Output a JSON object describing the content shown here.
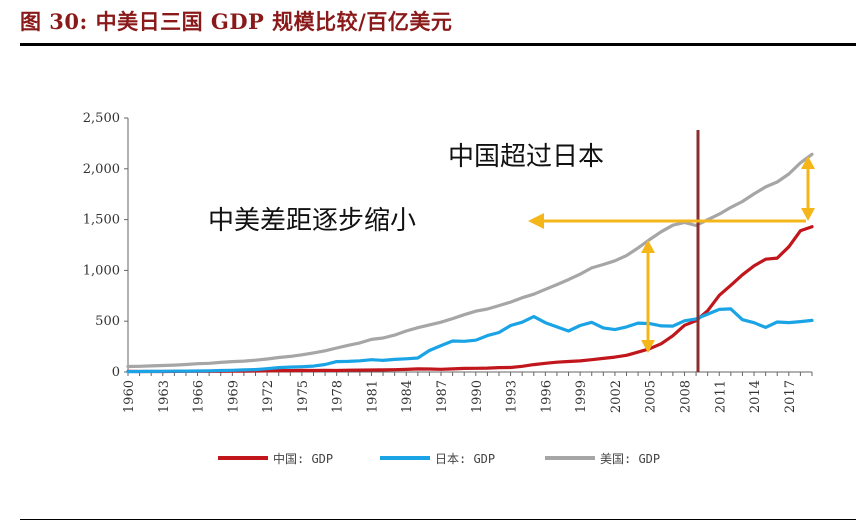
{
  "figure": {
    "title": "图 30:  中美日三国 GDP 规模比较/百亿美元"
  },
  "chart_data": {
    "type": "line",
    "x": [
      1960,
      1961,
      1962,
      1963,
      1964,
      1965,
      1966,
      1967,
      1968,
      1969,
      1970,
      1971,
      1972,
      1973,
      1974,
      1975,
      1976,
      1977,
      1978,
      1979,
      1980,
      1981,
      1982,
      1983,
      1984,
      1985,
      1986,
      1987,
      1988,
      1989,
      1990,
      1991,
      1992,
      1993,
      1994,
      1995,
      1996,
      1997,
      1998,
      1999,
      2000,
      2001,
      2002,
      2003,
      2004,
      2005,
      2006,
      2007,
      2008,
      2009,
      2010,
      2011,
      2012,
      2013,
      2014,
      2015,
      2016,
      2017,
      2018,
      2019
    ],
    "x_tick_labels": [
      "1960",
      "1963",
      "1966",
      "1969",
      "1972",
      "1975",
      "1978",
      "1981",
      "1984",
      "1987",
      "1990",
      "1993",
      "1996",
      "1999",
      "2002",
      "2005",
      "2008",
      "2011",
      "2014",
      "2017"
    ],
    "ylim": [
      0,
      2500
    ],
    "y_ticks": [
      0,
      500,
      1000,
      1500,
      2000,
      2500
    ],
    "y_tick_labels": [
      "0",
      "500",
      "1,000",
      "1,500",
      "2,000",
      "2,500"
    ],
    "grid": false,
    "legend_position": "bottom",
    "series": [
      {
        "name": "中国: GDP",
        "color": "#c0161c",
        "values": [
          6,
          5,
          5,
          5,
          6,
          7,
          7,
          7,
          7,
          8,
          9,
          10,
          11,
          14,
          14,
          16,
          15,
          17,
          15,
          18,
          19,
          20,
          21,
          23,
          26,
          31,
          30,
          27,
          31,
          35,
          36,
          38,
          43,
          44,
          56,
          73,
          86,
          96,
          103,
          109,
          121,
          134,
          147,
          164,
          196,
          229,
          279,
          357,
          460,
          505,
          603,
          755,
          853,
          957,
          1044,
          1110,
          1121,
          1232,
          1390,
          1430
        ]
      },
      {
        "name": "日本: GDP",
        "color": "#1aa4e6",
        "values": [
          4,
          5,
          6,
          7,
          8,
          9,
          10,
          12,
          15,
          17,
          21,
          24,
          32,
          43,
          48,
          52,
          58,
          74,
          102,
          104,
          110,
          121,
          114,
          124,
          130,
          138,
          212,
          260,
          305,
          302,
          313,
          358,
          389,
          458,
          490,
          545,
          485,
          444,
          404,
          458,
          489,
          434,
          417,
          444,
          481,
          476,
          454,
          452,
          504,
          523,
          570,
          616,
          621,
          515,
          485,
          439,
          492,
          486,
          496,
          508
        ]
      },
      {
        "name": "美国: GDP",
        "color": "#a6a6a6",
        "values": [
          54,
          56,
          60,
          64,
          68,
          74,
          82,
          86,
          94,
          102,
          107,
          116,
          128,
          143,
          154,
          169,
          188,
          209,
          236,
          263,
          286,
          321,
          335,
          363,
          404,
          436,
          464,
          490,
          526,
          564,
          598,
          620,
          654,
          688,
          731,
          766,
          814,
          860,
          909,
          963,
          1025,
          1058,
          1094,
          1146,
          1221,
          1304,
          1381,
          1445,
          1471,
          1442,
          1499,
          1554,
          1620,
          1678,
          1753,
          1822,
          1870,
          1949,
          2058,
          2143
        ]
      }
    ],
    "annotations": [
      "中国超过日本",
      "中美差距逐步缩小"
    ]
  }
}
